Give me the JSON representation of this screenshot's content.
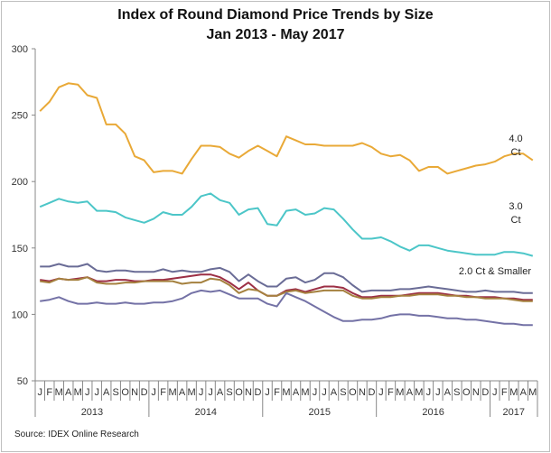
{
  "chart_data": {
    "type": "line",
    "title": "Index of Round Diamond Price Trends by Size",
    "subtitle": "Jan 2013 - May 2017",
    "source": "Source:  IDEX Online Research",
    "ylim": [
      50,
      300
    ],
    "yticks": [
      50,
      100,
      150,
      200,
      250,
      300
    ],
    "grid": false,
    "month_labels": [
      "J",
      "F",
      "M",
      "A",
      "M",
      "J",
      "J",
      "A",
      "S",
      "O",
      "N",
      "D"
    ],
    "years": [
      {
        "label": "2013",
        "months": 12
      },
      {
        "label": "2014",
        "months": 12
      },
      {
        "label": "2015",
        "months": 12
      },
      {
        "label": "2016",
        "months": 12
      },
      {
        "label": "2017",
        "months": 5
      }
    ],
    "annotations": [
      {
        "text": [
          "4.0",
          "Ct"
        ],
        "series": 0
      },
      {
        "text": [
          "3.0",
          "Ct"
        ],
        "series": 1
      },
      {
        "text": [
          "2.0 Ct & Smaller"
        ],
        "series": 2
      }
    ],
    "series": [
      {
        "color": "#E9A937",
        "values": [
          253,
          260,
          271,
          274,
          273,
          265,
          263,
          243,
          243,
          236,
          219,
          216,
          207,
          208,
          208,
          206,
          217,
          227,
          227,
          226,
          221,
          218,
          223,
          227,
          223,
          219,
          234,
          231,
          228,
          228,
          227,
          227,
          227,
          227,
          229,
          226,
          221,
          219,
          220,
          216,
          208,
          211,
          211,
          206,
          208,
          210,
          212,
          213,
          215,
          219,
          221,
          221,
          216
        ]
      },
      {
        "color": "#4CC6C8",
        "values": [
          181,
          184,
          187,
          185,
          184,
          185,
          178,
          178,
          177,
          173,
          171,
          169,
          172,
          177,
          175,
          175,
          181,
          189,
          191,
          186,
          184,
          175,
          179,
          180,
          168,
          167,
          178,
          179,
          175,
          176,
          180,
          179,
          172,
          164,
          157,
          157,
          158,
          155,
          151,
          148,
          152,
          152,
          150,
          148,
          147,
          146,
          145,
          145,
          145,
          147,
          147,
          146,
          144
        ]
      },
      {
        "color": "#6A6C96",
        "values": [
          136,
          136,
          138,
          136,
          136,
          138,
          133,
          132,
          133,
          133,
          132,
          132,
          132,
          134,
          132,
          133,
          132,
          132,
          134,
          135,
          132,
          125,
          130,
          125,
          121,
          121,
          127,
          128,
          124,
          126,
          131,
          131,
          128,
          122,
          117,
          118,
          118,
          118,
          119,
          119,
          120,
          121,
          120,
          119,
          118,
          117,
          117,
          118,
          117,
          117,
          117,
          116,
          116
        ]
      },
      {
        "color": "#9C2F45",
        "values": [
          126,
          125,
          127,
          126,
          127,
          128,
          125,
          125,
          126,
          126,
          125,
          125,
          126,
          126,
          127,
          128,
          129,
          130,
          130,
          128,
          124,
          119,
          124,
          118,
          114,
          114,
          118,
          119,
          117,
          119,
          121,
          121,
          120,
          116,
          113,
          113,
          114,
          114,
          114,
          115,
          116,
          116,
          116,
          115,
          114,
          114,
          113,
          113,
          113,
          112,
          112,
          111,
          111
        ]
      },
      {
        "color": "#A5813F",
        "values": [
          125,
          124,
          127,
          126,
          126,
          128,
          124,
          123,
          123,
          124,
          124,
          125,
          125,
          125,
          125,
          123,
          124,
          124,
          127,
          126,
          122,
          116,
          119,
          118,
          114,
          114,
          117,
          118,
          116,
          117,
          118,
          118,
          118,
          114,
          112,
          112,
          113,
          113,
          114,
          114,
          115,
          115,
          115,
          114,
          114,
          113,
          113,
          112,
          112,
          112,
          111,
          110,
          110
        ]
      },
      {
        "color": "#7472A6",
        "values": [
          110,
          111,
          113,
          110,
          108,
          108,
          109,
          108,
          108,
          109,
          108,
          108,
          109,
          109,
          110,
          112,
          116,
          118,
          117,
          118,
          115,
          112,
          112,
          112,
          108,
          106,
          116,
          113,
          110,
          106,
          102,
          98,
          95,
          95,
          96,
          96,
          97,
          99,
          100,
          100,
          99,
          99,
          98,
          97,
          97,
          96,
          96,
          95,
          94,
          93,
          93,
          92,
          92
        ]
      }
    ]
  }
}
